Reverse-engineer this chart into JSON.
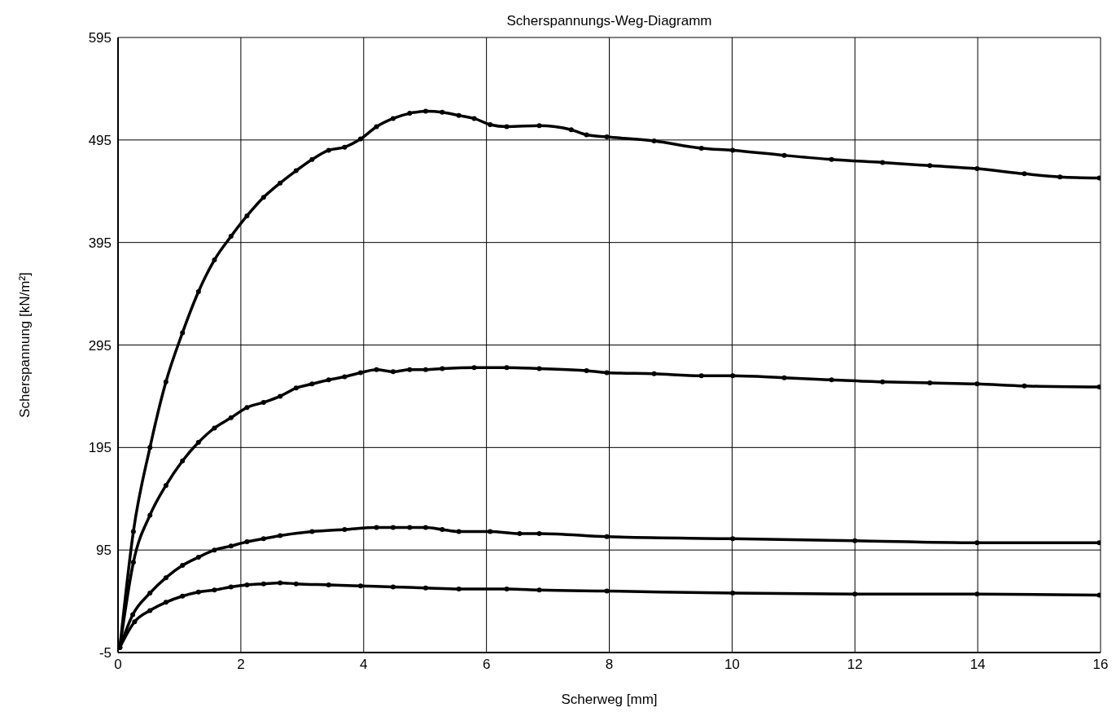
{
  "chart_data": {
    "type": "line",
    "title": "Scherspannungs-Weg-Diagramm",
    "xlabel": "Scherweg [mm]",
    "ylabel": "Scherspannung [kN/m²]",
    "xlim": [
      0,
      16
    ],
    "xticks": [
      0,
      2,
      4,
      6,
      8,
      10,
      12,
      14,
      16
    ],
    "ylim": [
      -5,
      595
    ],
    "yticks": [
      -5,
      95,
      195,
      295,
      395,
      495,
      595
    ],
    "grid": true,
    "marker": "circle",
    "line_style": "solid",
    "series": [
      {
        "color": "#000000",
        "x": [
          0.03,
          0.25,
          0.52,
          0.78,
          1.05,
          1.31,
          1.57,
          1.84,
          2.1,
          2.37,
          2.64,
          2.9,
          3.16,
          3.43,
          3.69,
          3.95,
          4.21,
          4.48,
          4.75,
          5.01,
          5.28,
          5.55,
          5.8,
          6.06,
          6.33,
          6.86,
          7.38,
          7.63,
          7.96,
          8.73,
          9.5,
          10.01,
          10.85,
          11.62,
          12.45,
          13.22,
          13.99,
          14.76,
          15.34,
          15.98
        ],
        "values": [
          0,
          113,
          195,
          259,
          307,
          347,
          378,
          401,
          421,
          439,
          453,
          465,
          476,
          485,
          488,
          496,
          508,
          516,
          521,
          523,
          522,
          519,
          516,
          510,
          508,
          509,
          505,
          500,
          498,
          494,
          487,
          485,
          480,
          476,
          473,
          470,
          467,
          462,
          459,
          458
        ]
      },
      {
        "color": "#000000",
        "x": [
          0.03,
          0.25,
          0.52,
          0.78,
          1.05,
          1.31,
          1.57,
          1.84,
          2.1,
          2.37,
          2.64,
          2.9,
          3.16,
          3.43,
          3.69,
          3.95,
          4.21,
          4.48,
          4.75,
          5.01,
          5.28,
          5.8,
          6.33,
          6.86,
          7.63,
          7.96,
          8.73,
          9.5,
          10.01,
          10.85,
          11.62,
          12.45,
          13.22,
          13.99,
          14.76,
          15.98
        ],
        "values": [
          0,
          83,
          129,
          158,
          182,
          200,
          214,
          224,
          234,
          239,
          245,
          253,
          257,
          261,
          264,
          268,
          271,
          269,
          271,
          271,
          272,
          273,
          273,
          272,
          270,
          268,
          267,
          265,
          265,
          263,
          261,
          259,
          258,
          257,
          255,
          254
        ]
      },
      {
        "color": "#000000",
        "x": [
          0.03,
          0.24,
          0.52,
          0.78,
          1.05,
          1.31,
          1.57,
          1.84,
          2.1,
          2.37,
          2.64,
          3.16,
          3.69,
          4.21,
          4.48,
          4.75,
          5.01,
          5.28,
          5.55,
          6.06,
          6.54,
          6.86,
          7.96,
          10.01,
          12,
          13.99,
          15.98
        ],
        "values": [
          0,
          32,
          53,
          68,
          80,
          88,
          95,
          99,
          103,
          106,
          109,
          113,
          115,
          117,
          117,
          117,
          117,
          115,
          113,
          113,
          111,
          111,
          108,
          106,
          104,
          102,
          102
        ]
      },
      {
        "color": "#000000",
        "x": [
          0.03,
          0.27,
          0.52,
          0.78,
          1.05,
          1.31,
          1.57,
          1.84,
          2.1,
          2.37,
          2.64,
          2.9,
          3.43,
          3.95,
          4.48,
          5.01,
          5.55,
          6.33,
          6.86,
          7.96,
          10.01,
          12,
          13.99,
          15.98
        ],
        "values": [
          0,
          25,
          36,
          44,
          50,
          54,
          56,
          59,
          61,
          62,
          63,
          62,
          61,
          60,
          59,
          58,
          57,
          57,
          56,
          55,
          53,
          52,
          52,
          51
        ]
      }
    ]
  }
}
